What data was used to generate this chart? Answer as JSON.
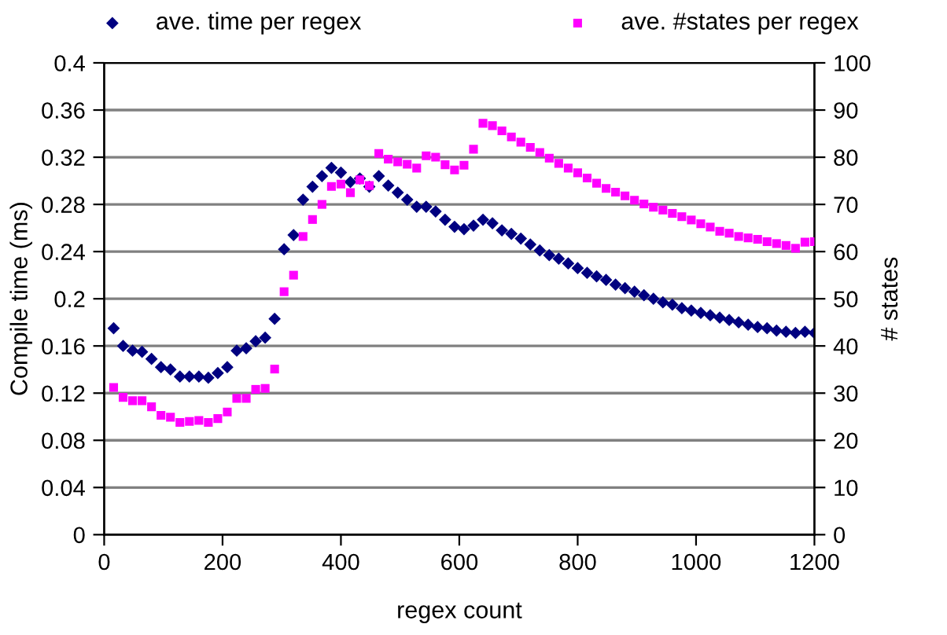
{
  "chart_data": {
    "type": "scatter",
    "xlabel": "regex count",
    "ylabel": "Compile time (ms)",
    "y2label": "# states",
    "x": [
      16,
      32,
      48,
      64,
      80,
      96,
      112,
      128,
      144,
      160,
      176,
      192,
      208,
      224,
      240,
      256,
      272,
      288,
      304,
      320,
      336,
      352,
      368,
      384,
      400,
      416,
      432,
      448,
      464,
      480,
      496,
      512,
      528,
      544,
      560,
      576,
      592,
      608,
      624,
      640,
      656,
      672,
      688,
      704,
      720,
      736,
      752,
      768,
      784,
      800,
      816,
      832,
      848,
      864,
      880,
      896,
      912,
      928,
      944,
      960,
      976,
      992,
      1008,
      1024,
      1040,
      1056,
      1072,
      1088,
      1104,
      1120,
      1136,
      1152,
      1168,
      1184,
      1200
    ],
    "series": [
      {
        "name": "ave. time per regex",
        "color": "#000080",
        "marker": "diamond",
        "values": [
          0.175,
          0.16,
          0.156,
          0.155,
          0.149,
          0.142,
          0.14,
          0.134,
          0.134,
          0.134,
          0.133,
          0.137,
          0.142,
          0.156,
          0.158,
          0.164,
          0.167,
          0.183,
          0.242,
          0.254,
          0.284,
          0.295,
          0.304,
          0.311,
          0.307,
          0.299,
          0.302,
          0.295,
          0.304,
          0.296,
          0.29,
          0.284,
          0.278,
          0.278,
          0.274,
          0.267,
          0.261,
          0.259,
          0.262,
          0.267,
          0.264,
          0.258,
          0.255,
          0.251,
          0.246,
          0.241,
          0.237,
          0.234,
          0.23,
          0.226,
          0.222,
          0.219,
          0.216,
          0.212,
          0.209,
          0.206,
          0.203,
          0.2,
          0.197,
          0.195,
          0.192,
          0.19,
          0.188,
          0.186,
          0.184,
          0.182,
          0.18,
          0.178,
          0.176,
          0.175,
          0.173,
          0.172,
          0.171,
          0.172,
          0.171
        ]
      },
      {
        "name": "ave. #states per regex",
        "color": "#ff00ff",
        "marker": "square",
        "axis": "y2",
        "values": [
          31.2,
          29.1,
          28.4,
          28.4,
          27.1,
          25.3,
          24.9,
          23.8,
          24.0,
          24.2,
          23.8,
          24.6,
          26.0,
          28.9,
          28.9,
          30.8,
          31.0,
          35.1,
          51.5,
          55.0,
          63.2,
          66.8,
          70.0,
          73.8,
          74.3,
          72.5,
          75.2,
          74.0,
          80.8,
          79.6,
          79.0,
          78.5,
          77.7,
          80.3,
          80.0,
          78.4,
          77.3,
          78.3,
          81.7,
          87.2,
          86.7,
          85.6,
          84.3,
          83.2,
          82.1,
          81.0,
          79.8,
          78.7,
          77.7,
          76.7,
          75.6,
          74.5,
          73.4,
          72.6,
          71.8,
          70.9,
          70.1,
          69.4,
          68.8,
          68.1,
          67.4,
          66.7,
          65.9,
          65.2,
          64.3,
          63.9,
          63.2,
          62.9,
          62.6,
          62.1,
          61.7,
          61.3,
          60.7,
          62.0,
          62.1
        ]
      }
    ],
    "xlim": [
      0,
      1200
    ],
    "xticks": [
      0,
      200,
      400,
      600,
      800,
      1000,
      1200
    ],
    "ylim": [
      0,
      0.4
    ],
    "yticks": [
      0,
      0.04,
      0.08,
      0.12,
      0.16,
      0.2,
      0.24,
      0.28,
      0.32,
      0.36,
      0.4
    ],
    "y2lim": [
      0,
      100
    ],
    "y2ticks": [
      0,
      10,
      20,
      30,
      40,
      50,
      60,
      70,
      80,
      90,
      100
    ],
    "grid": "y",
    "legend": "top"
  }
}
